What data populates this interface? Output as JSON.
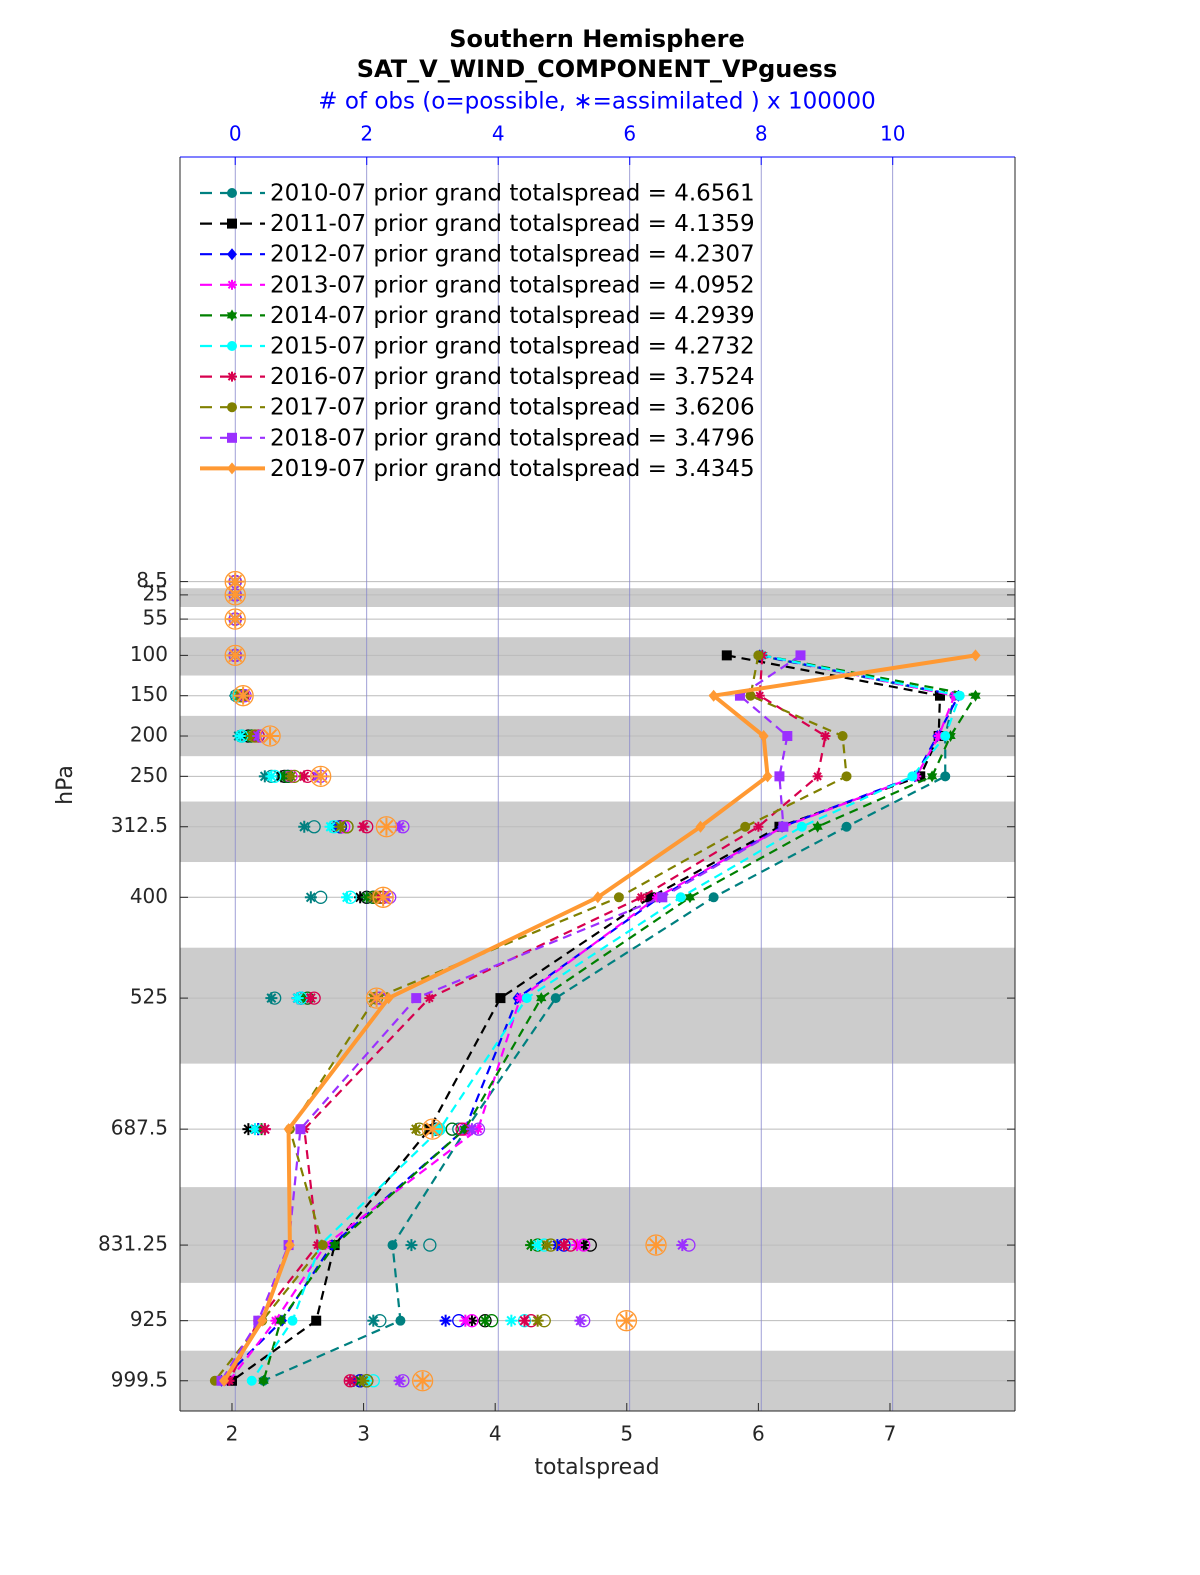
{
  "chart_data": {
    "type": "line",
    "title": "Southern Hemisphere",
    "subtitle": "SAT_V_WIND_COMPONENT_VPguess",
    "x2_label": "# of obs (o=possible, ∗=assimilated ) x 100000",
    "x_label": "totalspread",
    "y_label": "hPa",
    "y": [
      8.5,
      25,
      55,
      100,
      150,
      200,
      250,
      312.5,
      400,
      525,
      687.5,
      831.25,
      925,
      999.5
    ],
    "xlim": [
      1.605,
      7.95
    ],
    "xticks": [
      2,
      3,
      4,
      5,
      6,
      7
    ],
    "x2lim": [
      -0.84,
      11.86
    ],
    "x2ticks": [
      0,
      2,
      4,
      6,
      8,
      10
    ],
    "ylim": [
      -518,
      1037
    ],
    "y_reversed": true,
    "yticks": [
      8.5,
      25,
      55,
      100,
      150,
      200,
      250,
      312.5,
      400,
      525,
      687.5,
      831.25,
      925,
      999.5
    ],
    "grid": true,
    "legend": "upper left",
    "series": [
      {
        "name": "2010-07 prior grand totalspread = 4.6561",
        "color": "#008080",
        "linestyle": "dashed",
        "marker": "circle",
        "values": [
          null,
          null,
          null,
          6.0,
          7.49,
          7.42,
          7.42,
          6.67,
          5.66,
          4.46,
          3.78,
          3.22,
          3.28,
          2.24
        ],
        "obs_possible": [
          0,
          0,
          0,
          0,
          0.02,
          0.1,
          0.55,
          1.2,
          1.3,
          0.6,
          3.4,
          2.96,
          2.2,
          2.0
        ],
        "obs_assimilated": [
          0,
          0,
          0,
          0,
          0,
          0.05,
          0.45,
          1.05,
          1.15,
          0.55,
          0.35,
          2.68,
          2.1,
          1.9
        ]
      },
      {
        "name": "2011-07 prior grand totalspread = 4.1359",
        "color": "#000000",
        "linestyle": "dashed",
        "marker": "square",
        "values": [
          null,
          null,
          null,
          5.76,
          7.38,
          7.37,
          7.23,
          6.16,
          5.18,
          4.04,
          3.5,
          2.78,
          2.64,
          2.0
        ],
        "obs_possible": [
          0,
          0,
          0,
          0,
          0.05,
          0.2,
          0.75,
          1.6,
          2.0,
          1.0,
          3.05,
          5.4,
          3.8,
          1.9
        ],
        "obs_assimilated": [
          0,
          0,
          0,
          0,
          0.03,
          0.15,
          0.7,
          1.5,
          1.9,
          0.95,
          0.2,
          5.3,
          3.6,
          1.8
        ]
      },
      {
        "name": "2012-07 prior grand totalspread = 4.2307",
        "color": "#0000ff",
        "linestyle": "dashed",
        "marker": "diamond",
        "values": [
          null,
          null,
          null,
          6.01,
          7.52,
          7.36,
          7.19,
          6.18,
          5.25,
          4.17,
          3.77,
          2.76,
          2.38,
          1.92
        ],
        "obs_possible": [
          0,
          0,
          0,
          0,
          0.05,
          0.25,
          0.8,
          1.6,
          2.1,
          1.0,
          3.3,
          5.0,
          3.4,
          1.9
        ],
        "obs_assimilated": [
          0,
          0,
          0,
          0,
          0.03,
          0.2,
          0.75,
          1.55,
          2.0,
          0.95,
          0.35,
          4.9,
          3.2,
          1.8
        ]
      },
      {
        "name": "2013-07 prior grand totalspread = 4.0952",
        "color": "#ff00ff",
        "linestyle": "dashed",
        "marker": "asterisk",
        "values": [
          null,
          null,
          null,
          6.03,
          7.49,
          7.37,
          7.2,
          6.19,
          5.23,
          4.19,
          3.87,
          2.71,
          2.33,
          1.98
        ],
        "obs_possible": [
          0,
          0,
          0,
          0,
          0.1,
          0.3,
          0.85,
          1.65,
          2.2,
          1.1,
          3.5,
          5.3,
          3.6,
          2.0
        ],
        "obs_assimilated": [
          0,
          0,
          0,
          0,
          0.08,
          0.25,
          0.8,
          1.6,
          2.1,
          1.05,
          0.45,
          5.2,
          3.5,
          1.9
        ]
      },
      {
        "name": "2014-07 prior grand totalspread = 4.2939",
        "color": "#008000",
        "linestyle": "dashed",
        "marker": "hexagram",
        "values": [
          null,
          null,
          null,
          6.03,
          7.65,
          7.46,
          7.32,
          6.45,
          5.48,
          4.35,
          3.77,
          2.78,
          2.37,
          2.24
        ],
        "obs_possible": [
          0,
          0,
          0,
          0,
          0.08,
          0.25,
          0.8,
          1.7,
          2.1,
          1.1,
          3.3,
          4.6,
          3.9,
          2.0
        ],
        "obs_assimilated": [
          0,
          0,
          0,
          0,
          0.05,
          0.2,
          0.75,
          1.6,
          2.0,
          1.05,
          0.4,
          4.5,
          3.8,
          1.9
        ]
      },
      {
        "name": "2015-07 prior grand totalspread = 4.2732",
        "color": "#00ffff",
        "linestyle": "dashed",
        "marker": "circle",
        "values": [
          null,
          null,
          null,
          6.03,
          7.53,
          7.42,
          7.17,
          6.33,
          5.41,
          4.24,
          3.58,
          2.67,
          2.46,
          2.15
        ],
        "obs_possible": [
          0,
          0,
          0,
          0,
          0.05,
          0.1,
          0.6,
          1.5,
          1.75,
          1.0,
          3.1,
          4.7,
          4.4,
          2.1
        ],
        "obs_assimilated": [
          0,
          0,
          0,
          0,
          0.02,
          0.08,
          0.55,
          1.45,
          1.7,
          0.95,
          0.3,
          4.6,
          4.2,
          2.0
        ]
      },
      {
        "name": "2016-07 prior grand totalspread = 3.7524",
        "color": "#d7004e",
        "linestyle": "dashed",
        "marker": "asterisk",
        "values": [
          null,
          null,
          null,
          6.03,
          6.01,
          6.51,
          6.45,
          6.0,
          5.11,
          3.5,
          2.55,
          2.65,
          2.2,
          1.98
        ],
        "obs_possible": [
          0,
          0,
          0,
          0,
          0.12,
          0.35,
          1.1,
          2.0,
          2.25,
          1.2,
          3.45,
          5.1,
          4.5,
          1.75
        ],
        "obs_assimilated": [
          0,
          0,
          0,
          0,
          0.1,
          0.3,
          1.05,
          1.95,
          2.2,
          1.15,
          0.45,
          5.0,
          4.4,
          1.75
        ]
      },
      {
        "name": "2017-07 prior grand totalspread = 3.6206",
        "color": "#808000",
        "linestyle": "dashed",
        "marker": "circle",
        "values": [
          null,
          null,
          null,
          6.0,
          5.94,
          6.64,
          6.67,
          5.9,
          4.94,
          3.09,
          2.44,
          2.69,
          2.23,
          1.87
        ],
        "obs_possible": [
          0,
          0,
          0,
          0,
          0.1,
          0.3,
          0.9,
          1.7,
          2.2,
          2.15,
          2.8,
          4.8,
          4.7,
          2.0
        ],
        "obs_assimilated": [
          0,
          0,
          0,
          0,
          0.08,
          0.25,
          0.85,
          1.6,
          2.1,
          2.1,
          2.75,
          4.75,
          4.6,
          1.95
        ]
      },
      {
        "name": "2018-07 prior grand totalspread = 3.4796",
        "color": "#9b30ff",
        "linestyle": "dashed",
        "marker": "square",
        "values": [
          null,
          null,
          null,
          6.32,
          5.86,
          6.22,
          6.16,
          6.19,
          5.27,
          3.4,
          2.52,
          2.43,
          2.2,
          1.92
        ],
        "obs_possible": [
          0,
          0,
          0,
          0,
          0.15,
          0.4,
          1.3,
          2.55,
          2.35,
          2.2,
          3.7,
          6.9,
          5.3,
          2.55
        ],
        "obs_assimilated": [
          0,
          0,
          0,
          0,
          0.12,
          0.35,
          1.25,
          2.5,
          2.3,
          2.15,
          3.6,
          6.8,
          5.25,
          2.5
        ]
      },
      {
        "name": "2019-07 prior grand totalspread = 3.4345",
        "color": "#ff9933",
        "linestyle": "solid",
        "marker": "diamond",
        "values": [
          null,
          null,
          null,
          7.65,
          5.66,
          6.04,
          6.07,
          5.56,
          4.78,
          3.19,
          2.43,
          2.44,
          2.23,
          1.94
        ],
        "obs_possible": [
          0,
          0,
          0,
          0,
          0.12,
          0.53,
          1.3,
          2.3,
          2.25,
          2.15,
          3.0,
          6.4,
          5.95,
          2.85
        ],
        "obs_assimilated": [
          0,
          0,
          0,
          0,
          0.12,
          0.53,
          1.3,
          2.3,
          2.25,
          2.15,
          3.0,
          6.4,
          5.95,
          2.85
        ]
      }
    ]
  }
}
